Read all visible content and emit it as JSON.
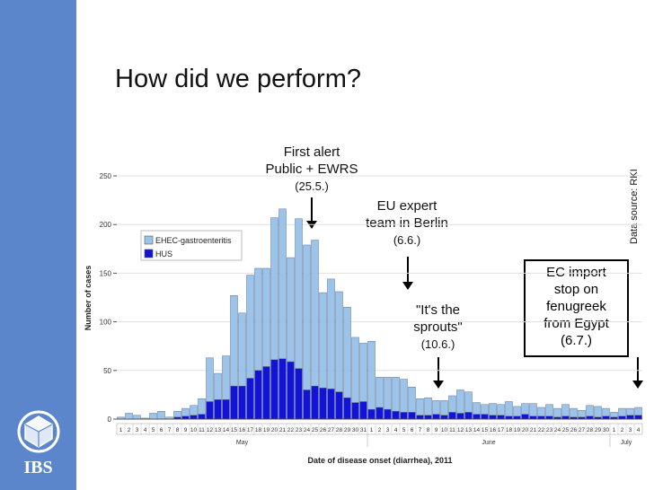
{
  "slide": {
    "title": "How did we perform?",
    "logo_text": "IBS",
    "data_source": "Data source: RKI"
  },
  "annotations": {
    "first_alert": {
      "line1": "First alert",
      "line2": "Public + EWRS",
      "date": "(25.5.)"
    },
    "eu_team": {
      "line1": "EU expert",
      "line2": "team in Berlin",
      "date": "(6.6.)"
    },
    "sprouts": {
      "line1": "\"It's the",
      "line2": "sprouts\"",
      "date": "(10.6.)"
    },
    "import_stop": {
      "line1": "EC import",
      "line2": "stop on",
      "line3": "fenugreek",
      "line4": "from Egypt",
      "date": "(6.7.)"
    }
  },
  "colors": {
    "sidebar": "#5b86cc",
    "ehec": "#9cc3ea",
    "hus": "#1313d6",
    "bar_stroke": "#4a5a78"
  },
  "chart_data": {
    "type": "bar",
    "stacked": true,
    "xlabel": "Date of disease onset (diarrhea), 2011",
    "ylabel": "Number of cases",
    "ylim": [
      0,
      250
    ],
    "yticks": [
      0,
      50,
      100,
      150,
      200,
      250
    ],
    "legend_position": "upper-left",
    "categories": [
      "1",
      "2",
      "3",
      "4",
      "5",
      "6",
      "7",
      "8",
      "9",
      "10",
      "11",
      "12",
      "13",
      "14",
      "15",
      "16",
      "17",
      "18",
      "19",
      "20",
      "21",
      "22",
      "23",
      "24",
      "25",
      "26",
      "27",
      "28",
      "29",
      "30",
      "31",
      "1",
      "2",
      "3",
      "4",
      "5",
      "6",
      "7",
      "8",
      "9",
      "10",
      "11",
      "12",
      "13",
      "14",
      "15",
      "16",
      "17",
      "18",
      "19",
      "20",
      "21",
      "22",
      "23",
      "24",
      "25",
      "26",
      "27",
      "28",
      "29",
      "30",
      "1",
      "2",
      "3",
      "4"
    ],
    "months": [
      {
        "label": "May",
        "start": 0,
        "end": 30
      },
      {
        "label": "June",
        "start": 31,
        "end": 60
      },
      {
        "label": "July",
        "start": 61,
        "end": 64
      }
    ],
    "series": [
      {
        "name": "EHEC-gastroenteritis",
        "values": [
          2,
          6,
          4,
          1,
          6,
          8,
          2,
          6,
          8,
          10,
          16,
          45,
          27,
          45,
          93,
          75,
          106,
          105,
          101,
          146,
          154,
          107,
          154,
          149,
          150,
          98,
          113,
          103,
          93,
          67,
          60,
          70,
          31,
          33,
          35,
          34,
          26,
          17,
          18,
          14,
          15,
          17,
          24,
          21,
          12,
          10,
          12,
          11,
          15,
          10,
          11,
          13,
          9,
          12,
          9,
          12,
          9,
          7,
          11,
          11,
          8,
          5,
          8,
          7,
          8
        ]
      },
      {
        "name": "HUS",
        "values": [
          0,
          0,
          0,
          0,
          0,
          0,
          0,
          2,
          3,
          4,
          5,
          18,
          20,
          20,
          34,
          34,
          42,
          50,
          54,
          61,
          62,
          59,
          52,
          30,
          34,
          32,
          31,
          28,
          22,
          17,
          18,
          10,
          12,
          10,
          8,
          7,
          7,
          4,
          4,
          5,
          4,
          7,
          6,
          7,
          5,
          5,
          4,
          4,
          3,
          3,
          5,
          3,
          3,
          3,
          2,
          3,
          2,
          2,
          3,
          2,
          3,
          2,
          3,
          4,
          4
        ]
      }
    ]
  }
}
